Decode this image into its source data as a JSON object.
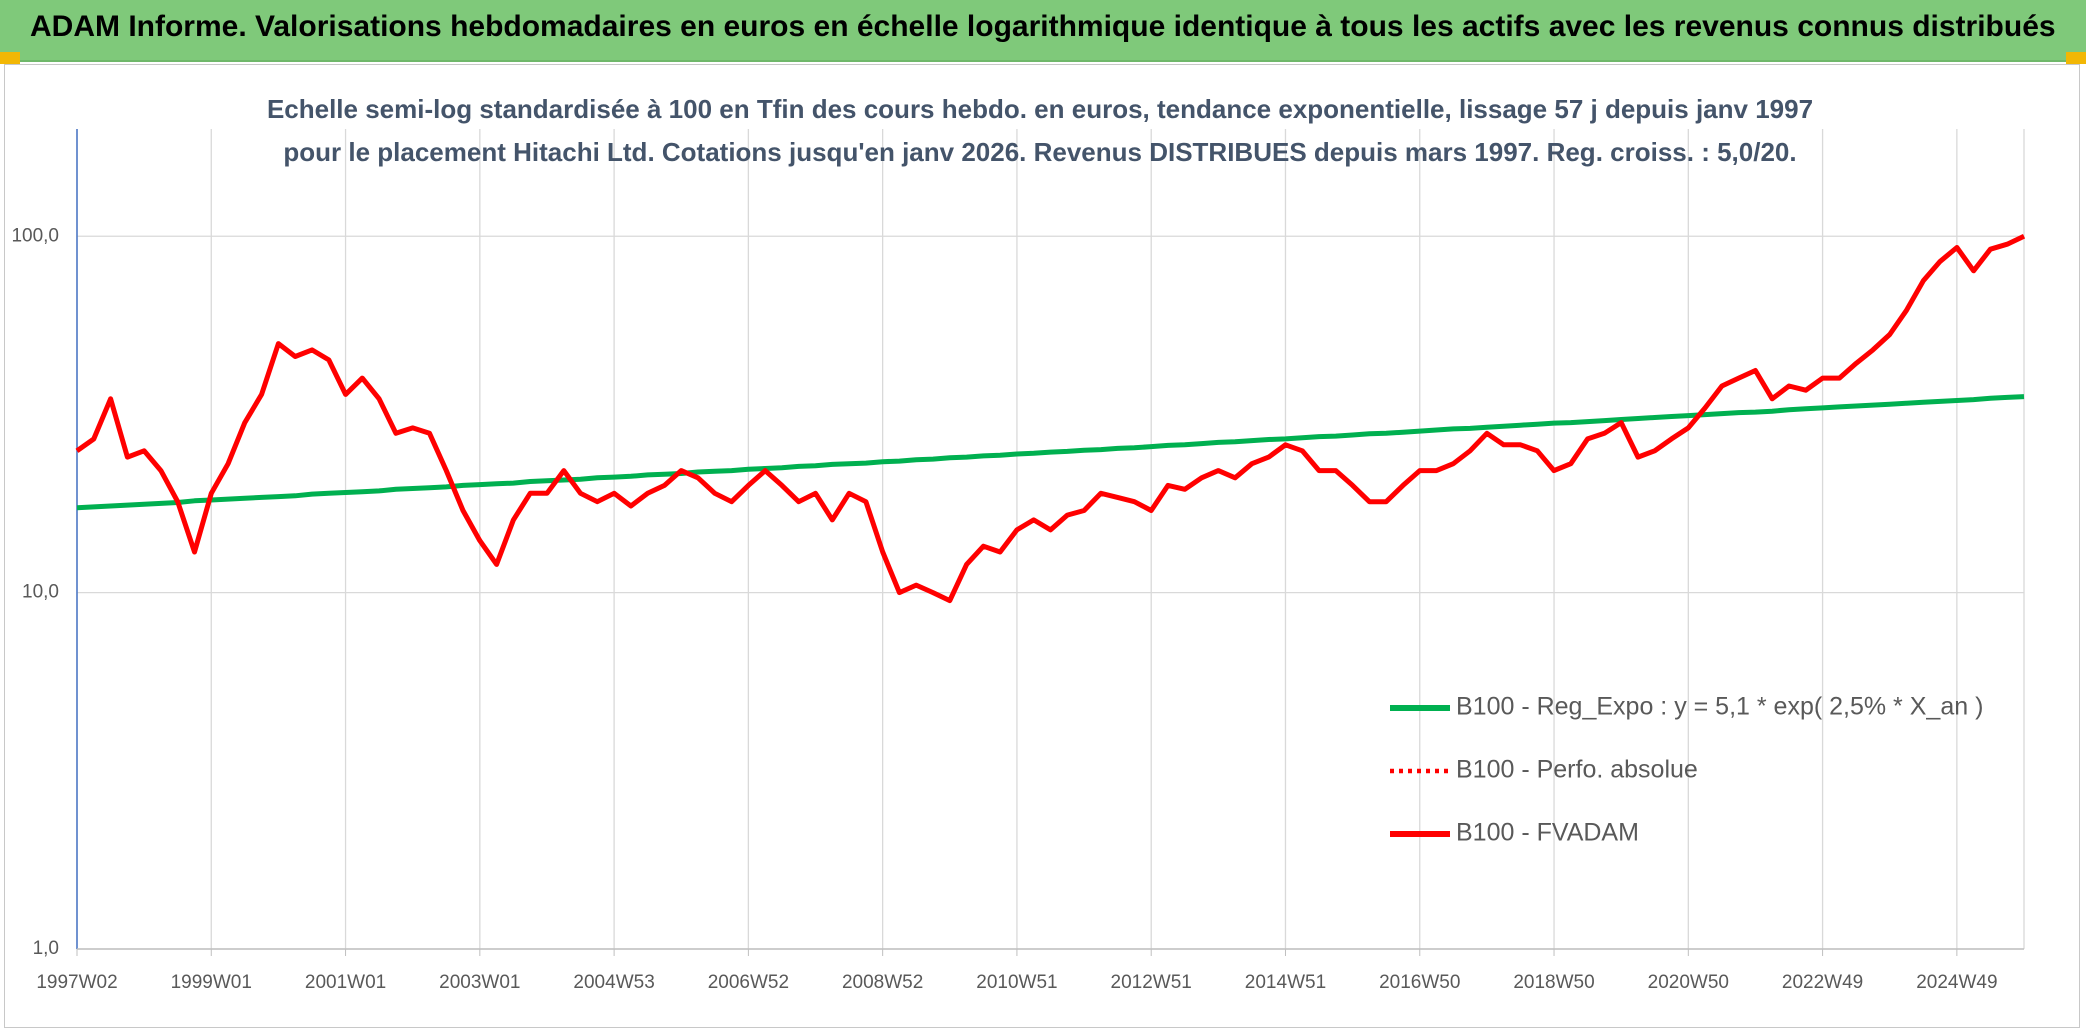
{
  "chart_data": {
    "type": "line",
    "title": "ADAM Informe. Valorisations hebdomadaires en euros en échelle logarithmique identique à tous les actifs avec les revenus connus distribués",
    "subtitle": "Echelle semi-log standardisée à 100 en Tfin des cours hebdo. en euros, tendance exponentielle, lissage 57 j depuis janv 1997 pour le placement Hitachi Ltd. Cotations jusqu'en janv 2026. Revenus DISTRIBUES depuis mars 1997. Reg. croiss. : 5,0/20.",
    "log_scale": true,
    "grid": true,
    "legend": "right",
    "ylim": [
      1,
      200
    ],
    "yticks": [
      {
        "value": 1,
        "label": "1,0"
      },
      {
        "value": 10,
        "label": "10,0"
      },
      {
        "value": 100,
        "label": "100,0"
      }
    ],
    "categories": [
      "1997W02",
      null,
      null,
      null,
      null,
      null,
      null,
      null,
      "1999W01",
      null,
      null,
      null,
      null,
      null,
      null,
      null,
      "2001W01",
      null,
      null,
      null,
      null,
      null,
      null,
      null,
      "2003W01",
      null,
      null,
      null,
      null,
      null,
      null,
      null,
      "2004W53",
      null,
      null,
      null,
      null,
      null,
      null,
      null,
      "2006W52",
      null,
      null,
      null,
      null,
      null,
      null,
      null,
      "2008W52",
      null,
      null,
      null,
      null,
      null,
      null,
      null,
      "2010W51",
      null,
      null,
      null,
      null,
      null,
      null,
      null,
      "2012W51",
      null,
      null,
      null,
      null,
      null,
      null,
      null,
      "2014W51",
      null,
      null,
      null,
      null,
      null,
      null,
      null,
      "2016W50",
      null,
      null,
      null,
      null,
      null,
      null,
      null,
      "2018W50",
      null,
      null,
      null,
      null,
      null,
      null,
      null,
      "2020W50",
      null,
      null,
      null,
      null,
      null,
      null,
      null,
      "2022W49",
      null,
      null,
      null,
      null,
      null,
      null,
      null,
      "2024W49",
      null,
      null,
      null,
      null
    ],
    "series": [
      {
        "name": "B100 - Reg_Expo : y = 5,1 * exp( 2,5% *  X_an )",
        "color": "#00b050",
        "style": "solid",
        "values": [
          17.3,
          17.4,
          17.5,
          17.6,
          17.7,
          17.8,
          17.9,
          18.1,
          18.2,
          18.3,
          18.4,
          18.5,
          18.6,
          18.7,
          18.9,
          19.0,
          19.1,
          19.2,
          19.3,
          19.5,
          19.6,
          19.7,
          19.8,
          20.0,
          20.1,
          20.2,
          20.3,
          20.5,
          20.6,
          20.7,
          20.8,
          21.0,
          21.1,
          21.2,
          21.4,
          21.5,
          21.6,
          21.8,
          21.9,
          22.0,
          22.2,
          22.3,
          22.4,
          22.6,
          22.7,
          22.9,
          23.0,
          23.1,
          23.3,
          23.4,
          23.6,
          23.7,
          23.9,
          24.0,
          24.2,
          24.3,
          24.5,
          24.6,
          24.8,
          24.9,
          25.1,
          25.2,
          25.4,
          25.5,
          25.7,
          25.9,
          26.0,
          26.2,
          26.4,
          26.5,
          26.7,
          26.9,
          27.0,
          27.2,
          27.4,
          27.5,
          27.7,
          27.9,
          28.0,
          28.2,
          28.4,
          28.6,
          28.8,
          28.9,
          29.1,
          29.3,
          29.5,
          29.7,
          29.9,
          30.0,
          30.2,
          30.4,
          30.6,
          30.8,
          31.0,
          31.2,
          31.4,
          31.6,
          31.8,
          32.0,
          32.1,
          32.3,
          32.6,
          32.8,
          33.0,
          33.2,
          33.4,
          33.6,
          33.8,
          34.0,
          34.2,
          34.4,
          34.6,
          34.8,
          35.1,
          35.3,
          35.5
        ]
      },
      {
        "name": "B100 - Perfo. absolue",
        "color": "#ff0000",
        "style": "dotted",
        "values": [
          25,
          27,
          35,
          24,
          25,
          22,
          18,
          13,
          19,
          23,
          30,
          36,
          50,
          46,
          48,
          45,
          36,
          40,
          35,
          28,
          29,
          28,
          22,
          17,
          14,
          12,
          16,
          19,
          19,
          22,
          19,
          18,
          19,
          17.5,
          19,
          20,
          22,
          21,
          19,
          18,
          20,
          22,
          20,
          18,
          19,
          16,
          19,
          18,
          13,
          10,
          10.5,
          10,
          9.5,
          12,
          13.5,
          13,
          15,
          16,
          15,
          16.5,
          17,
          19,
          18.5,
          18,
          17,
          20,
          19.5,
          21,
          22,
          21,
          23,
          24,
          26,
          25,
          22,
          22,
          20,
          18,
          18,
          20,
          22,
          22,
          23,
          25,
          28,
          26,
          26,
          25,
          22,
          23,
          27,
          28,
          30,
          24,
          25,
          27,
          29,
          33,
          38,
          40,
          42,
          35,
          38,
          37,
          40,
          40,
          44,
          48,
          53,
          62,
          75,
          85,
          93,
          80,
          92,
          95,
          100
        ]
      },
      {
        "name": "B100 - FVADAM",
        "color": "#ff0000",
        "style": "solid",
        "values": [
          25,
          27,
          35,
          24,
          25,
          22,
          18,
          13,
          19,
          23,
          30,
          36,
          50,
          46,
          48,
          45,
          36,
          40,
          35,
          28,
          29,
          28,
          22,
          17,
          14,
          12,
          16,
          19,
          19,
          22,
          19,
          18,
          19,
          17.5,
          19,
          20,
          22,
          21,
          19,
          18,
          20,
          22,
          20,
          18,
          19,
          16,
          19,
          18,
          13,
          10,
          10.5,
          10,
          9.5,
          12,
          13.5,
          13,
          15,
          16,
          15,
          16.5,
          17,
          19,
          18.5,
          18,
          17,
          20,
          19.5,
          21,
          22,
          21,
          23,
          24,
          26,
          25,
          22,
          22,
          20,
          18,
          18,
          20,
          22,
          22,
          23,
          25,
          28,
          26,
          26,
          25,
          22,
          23,
          27,
          28,
          30,
          24,
          25,
          27,
          29,
          33,
          38,
          40,
          42,
          35,
          38,
          37,
          40,
          40,
          44,
          48,
          53,
          62,
          75,
          85,
          93,
          80,
          92,
          95,
          100
        ]
      }
    ]
  }
}
